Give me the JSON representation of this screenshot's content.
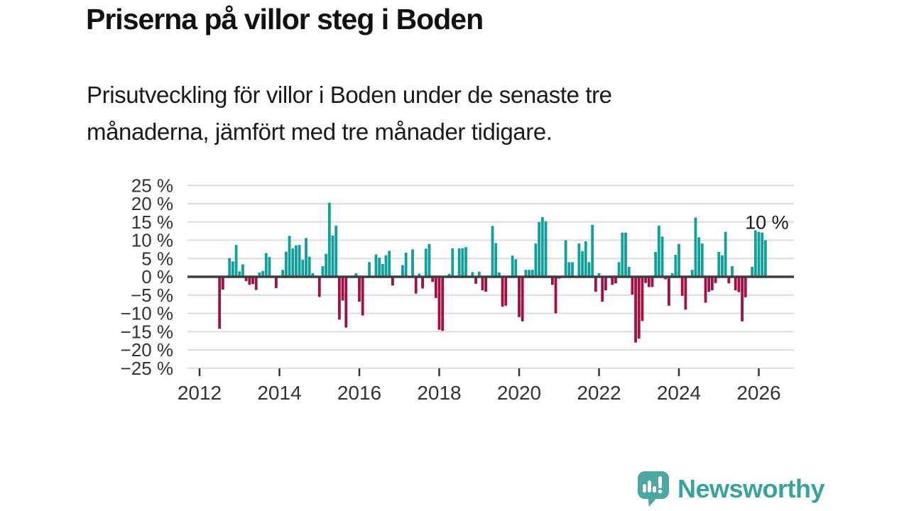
{
  "header": {
    "title": "Priserna på villor steg i Boden",
    "subtitle_line1": "Prisutveckling för villor i Boden under de senaste tre",
    "subtitle_line2": "månaderna, jämfört med tre månader tidigare."
  },
  "chart_data": {
    "type": "bar",
    "title": "Priserna på villor steg i Boden",
    "xlabel": "",
    "ylabel": "%",
    "ylim": [
      -25,
      25
    ],
    "grid": true,
    "legend_position": "none",
    "annotation": {
      "text": "10 %",
      "value": 10
    },
    "yticks_values": [
      25,
      20,
      15,
      10,
      5,
      0,
      -5,
      -10,
      -15,
      -20,
      -25
    ],
    "yticks_labels": [
      "25 %",
      "20 %",
      "15 %",
      "10 %",
      "5 %",
      "0 %",
      "−5 %",
      "−10 %",
      "−15 %",
      "−20 %",
      "−25 %"
    ],
    "xticks": [
      {
        "year": 2012,
        "label": "2012"
      },
      {
        "year": 2014,
        "label": "2014"
      },
      {
        "year": 2016,
        "label": "2016"
      },
      {
        "year": 2018,
        "label": "2018"
      },
      {
        "year": 2020,
        "label": "2020"
      },
      {
        "year": 2022,
        "label": "2022"
      },
      {
        "year": 2024,
        "label": "2024"
      },
      {
        "year": 2026,
        "label": "2026"
      }
    ],
    "colors": {
      "positive": "#0fa09b",
      "negative": "#a50d45",
      "grid": "#dcdcdc",
      "zero_line": "#3d3d3d",
      "axis_text": "#333333",
      "annotation_text": "#1a1a1a"
    },
    "x": [
      "2012-07",
      "2012-08",
      "2012-09",
      "2012-10",
      "2012-11",
      "2012-12",
      "2013-01",
      "2013-02",
      "2013-03",
      "2013-04",
      "2013-05",
      "2013-06",
      "2013-07",
      "2013-08",
      "2013-09",
      "2013-10",
      "2013-11",
      "2013-12",
      "2014-01",
      "2014-02",
      "2014-03",
      "2014-04",
      "2014-05",
      "2014-06",
      "2014-07",
      "2014-08",
      "2014-09",
      "2014-10",
      "2014-11",
      "2014-12",
      "2015-01",
      "2015-02",
      "2015-03",
      "2015-04",
      "2015-05",
      "2015-06",
      "2015-07",
      "2015-08",
      "2015-09",
      "2015-10",
      "2015-11",
      "2015-12",
      "2016-01",
      "2016-02",
      "2016-03",
      "2016-04",
      "2016-05",
      "2016-06",
      "2016-07",
      "2016-08",
      "2016-09",
      "2016-10",
      "2016-11",
      "2016-12",
      "2017-01",
      "2017-02",
      "2017-03",
      "2017-04",
      "2017-05",
      "2017-06",
      "2017-07",
      "2017-08",
      "2017-09",
      "2017-10",
      "2017-11",
      "2017-12",
      "2018-01",
      "2018-02",
      "2018-03",
      "2018-04",
      "2018-05",
      "2018-06",
      "2018-07",
      "2018-08",
      "2018-09",
      "2018-10",
      "2018-11",
      "2018-12",
      "2019-01",
      "2019-02",
      "2019-03",
      "2019-04",
      "2019-05",
      "2019-06",
      "2019-07",
      "2019-08",
      "2019-09",
      "2019-10",
      "2019-11",
      "2019-12",
      "2020-01",
      "2020-02",
      "2020-03",
      "2020-04",
      "2020-05",
      "2020-06",
      "2020-07",
      "2020-08",
      "2020-09",
      "2020-10",
      "2020-11",
      "2020-12",
      "2021-01",
      "2021-02",
      "2021-03",
      "2021-04",
      "2021-05",
      "2021-06",
      "2021-07",
      "2021-08",
      "2021-09",
      "2021-10",
      "2021-11",
      "2021-12",
      "2022-01",
      "2022-02",
      "2022-03",
      "2022-04",
      "2022-05",
      "2022-06",
      "2022-07",
      "2022-08",
      "2022-09",
      "2022-10",
      "2022-11",
      "2022-12",
      "2023-01",
      "2023-02",
      "2023-03",
      "2023-04",
      "2023-05",
      "2023-06",
      "2023-07",
      "2023-08",
      "2023-09",
      "2023-10",
      "2023-11",
      "2023-12",
      "2024-01",
      "2024-02",
      "2024-03",
      "2024-04",
      "2024-05",
      "2024-06",
      "2024-07",
      "2024-08",
      "2024-09",
      "2024-10",
      "2024-11",
      "2024-12",
      "2025-01",
      "2025-02",
      "2025-03",
      "2025-04",
      "2025-05",
      "2025-06",
      "2025-07",
      "2025-08",
      "2025-09",
      "2025-10",
      "2025-11",
      "2025-12",
      "2026-01",
      "2026-02",
      "2026-03"
    ],
    "values": [
      -14.2,
      -3.5,
      0,
      5.1,
      4.2,
      8.7,
      1.5,
      3.4,
      -1.2,
      -2.2,
      -2.0,
      -3.6,
      1.2,
      1.6,
      6.5,
      5.4,
      0,
      -3.1,
      0,
      1.9,
      6.9,
      11.2,
      7.8,
      8.6,
      8.7,
      4.7,
      10.6,
      5.5,
      1.0,
      0,
      -5.5,
      2.9,
      6.3,
      20.3,
      11.3,
      14.0,
      -11.7,
      -6.5,
      -13.9,
      0,
      0,
      1.0,
      -6.8,
      -10.6,
      0,
      4.0,
      0,
      6.1,
      5.2,
      3.5,
      5.9,
      7.1,
      -2.4,
      0,
      0,
      3.2,
      6.6,
      0,
      7.5,
      -4.6,
      0.9,
      -3.2,
      7.7,
      9.0,
      -1.4,
      -5.8,
      -14.5,
      -14.8,
      0,
      0.8,
      7.8,
      0,
      7.8,
      7.8,
      8.1,
      0,
      1.3,
      -1.9,
      1.4,
      -3.7,
      -4.1,
      0,
      13.9,
      9.2,
      1.2,
      -8.2,
      -7.9,
      0,
      5.8,
      4.8,
      -11.0,
      -12.2,
      1.9,
      1.9,
      1.9,
      9.1,
      15.0,
      16.3,
      15.2,
      0,
      -2.2,
      -10.0,
      -0.5,
      0,
      10.0,
      4.0,
      4.0,
      0,
      9.1,
      7.0,
      9.7,
      4.0,
      14.2,
      -4.1,
      1.0,
      -6.8,
      -3.7,
      0,
      -2.2,
      -1.8,
      4.0,
      12.1,
      12.1,
      2.7,
      -4.9,
      -18.0,
      -16.9,
      -12.1,
      -1.7,
      -2.8,
      -2.8,
      6.8,
      14.0,
      11.0,
      -0.7,
      -7.9,
      1.0,
      6.0,
      9.0,
      -5.2,
      -9.0,
      0,
      1.9,
      16.2,
      10.8,
      9.1,
      -7.1,
      -4.1,
      -3.7,
      -1.7,
      6.8,
      5.9,
      12.3,
      -1.8,
      2.9,
      -3.7,
      -4.2,
      -12.2,
      -5.6,
      0,
      2.7,
      12.7,
      12.3,
      12.1,
      10.0
    ]
  },
  "footer": {
    "brand": "Newsworthy",
    "brand_color": "#38a39d",
    "icon_color": "#4aa7a1"
  }
}
